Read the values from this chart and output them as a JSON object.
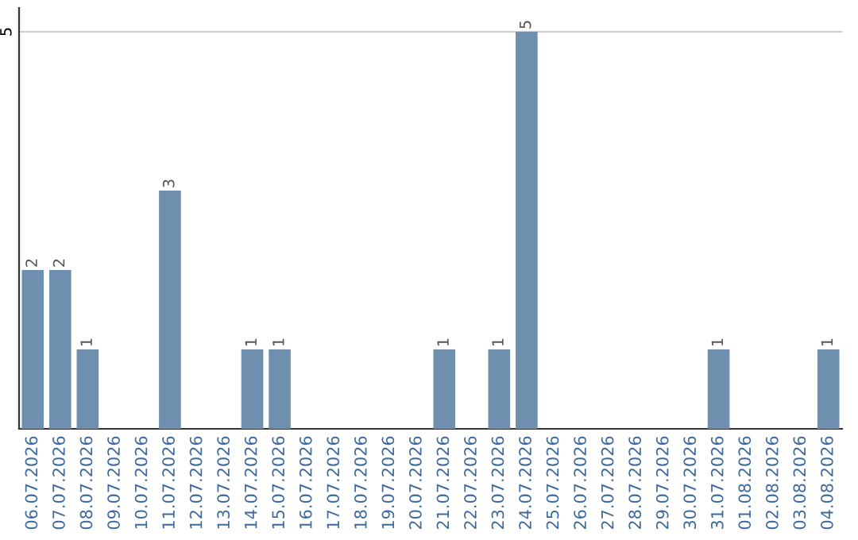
{
  "chart_data": {
    "type": "bar",
    "categories": [
      "06.07.2026",
      "07.07.2026",
      "08.07.2026",
      "09.07.2026",
      "10.07.2026",
      "11.07.2026",
      "12.07.2026",
      "13.07.2026",
      "14.07.2026",
      "15.07.2026",
      "16.07.2026",
      "17.07.2026",
      "18.07.2026",
      "19.07.2026",
      "20.07.2026",
      "21.07.2026",
      "22.07.2026",
      "23.07.2026",
      "24.07.2026",
      "25.07.2026",
      "26.07.2026",
      "27.07.2026",
      "28.07.2026",
      "29.07.2026",
      "30.07.2026",
      "31.07.2026",
      "01.08.2026",
      "02.08.2026",
      "03.08.2026",
      "04.08.2026"
    ],
    "values": [
      2,
      2,
      1,
      0,
      0,
      3,
      0,
      0,
      1,
      1,
      0,
      0,
      0,
      0,
      0,
      1,
      0,
      1,
      5,
      0,
      0,
      0,
      0,
      0,
      0,
      1,
      0,
      0,
      0,
      1
    ],
    "value_labels": [
      "2",
      "2",
      "1",
      null,
      null,
      "3",
      null,
      null,
      "1",
      "1",
      null,
      null,
      null,
      null,
      null,
      "1",
      null,
      "1",
      "5",
      null,
      null,
      null,
      null,
      null,
      null,
      "1",
      null,
      null,
      null,
      "1"
    ],
    "color": "#6e8fae",
    "ylim": [
      0,
      5.3
    ],
    "yticks": [
      5
    ],
    "grid": "y"
  }
}
